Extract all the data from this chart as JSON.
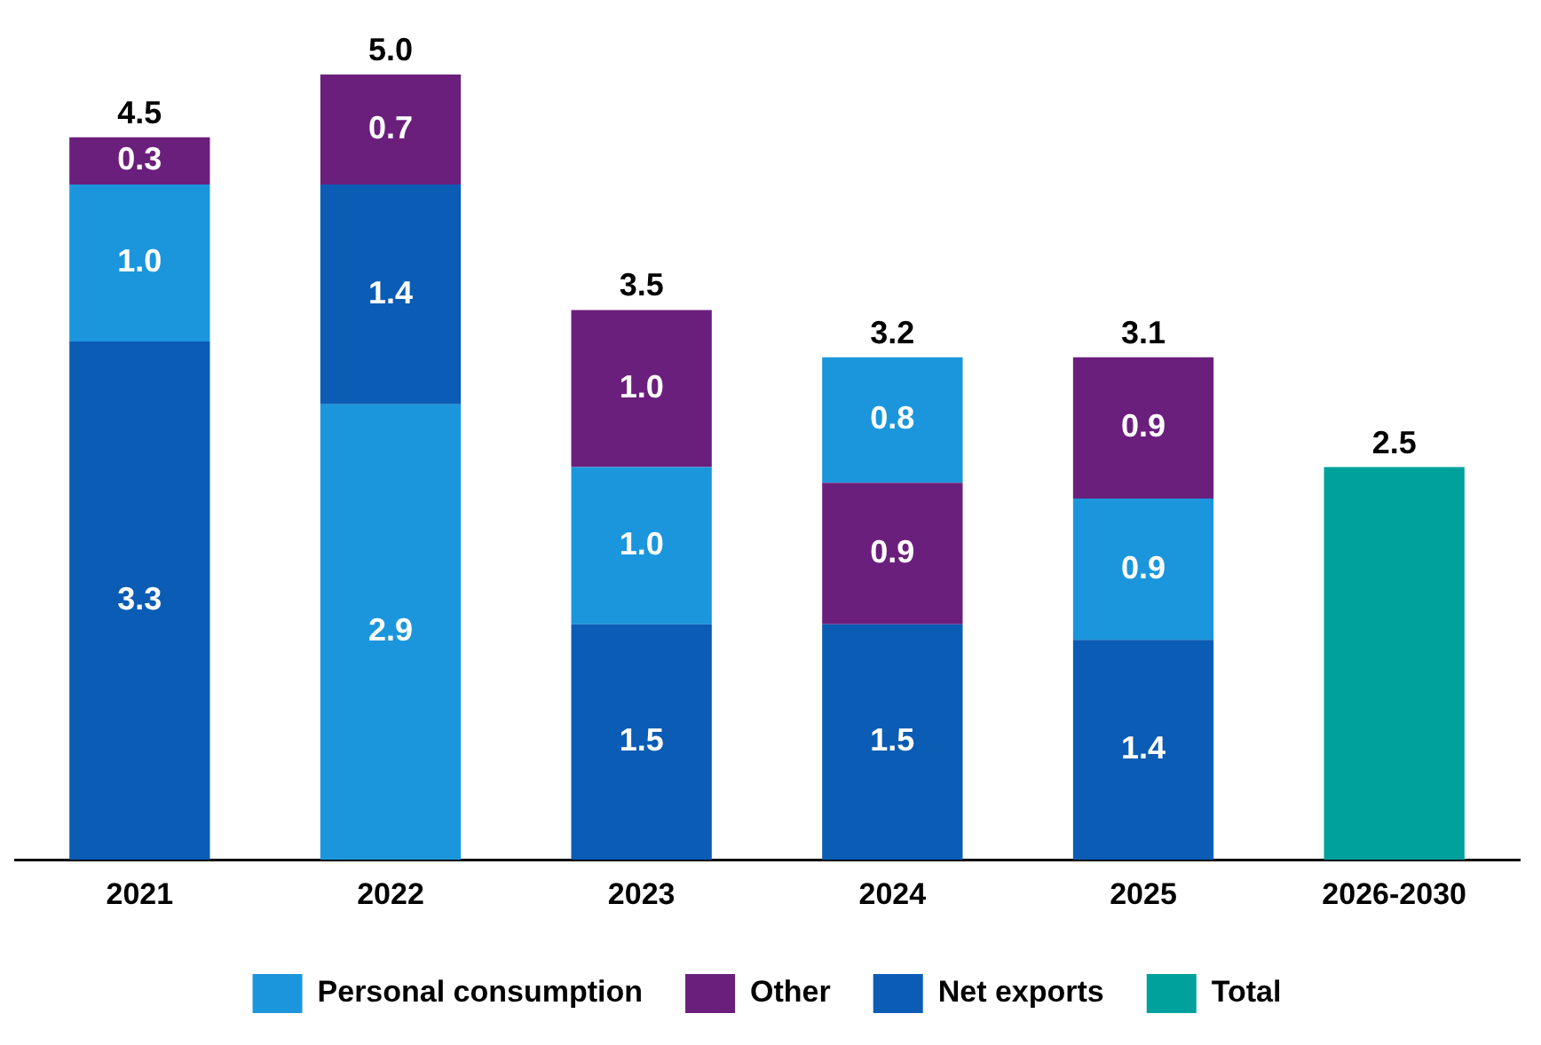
{
  "chart_data": {
    "type": "bar",
    "stacked": true,
    "categories": [
      "2021",
      "2022",
      "2023",
      "2024",
      "2025",
      "2026-2030"
    ],
    "series": [
      {
        "color": "#0a5cb4",
        "values": [
          3.3,
          null,
          1.5,
          1.5,
          1.4,
          null
        ],
        "value_labels": [
          "3.3",
          null,
          "1.5",
          "1.5",
          "1.4",
          null
        ]
      },
      {
        "name": "Personal consumption",
        "color": "#1b96dc",
        "values": [
          1.0,
          2.9,
          1.0,
          null,
          0.9,
          null
        ],
        "value_labels": [
          "1.0",
          "2.9",
          "1.0",
          null,
          "0.9",
          null
        ]
      },
      {
        "name": "Other",
        "color": "#6b1f7c",
        "values": [
          null,
          null,
          null,
          0.9,
          null,
          null
        ],
        "value_labels": [
          null,
          null,
          null,
          "0.9",
          null,
          null
        ]
      },
      {
        "name": "Net exports",
        "color": "#0a5cb4",
        "values": [
          null,
          1.4,
          null,
          null,
          null,
          null
        ],
        "value_labels": [
          null,
          "1.4",
          null,
          null,
          null,
          null
        ]
      },
      {
        "color": "#1b96dc",
        "values": [
          null,
          null,
          null,
          0.8,
          null,
          null
        ],
        "value_labels": [
          null,
          null,
          null,
          "0.8",
          null,
          null
        ]
      },
      {
        "color": "#6b1f7c",
        "values": [
          0.3,
          0.7,
          1.0,
          null,
          0.9,
          null
        ],
        "value_labels": [
          "0.3",
          "0.7",
          "1.0",
          null,
          "0.9",
          null
        ]
      },
      {
        "name": "Total",
        "color": "#00a19c",
        "values": [
          null,
          null,
          null,
          null,
          null,
          2.5
        ]
      }
    ],
    "totals": [
      "4.5",
      "5.0",
      "3.5",
      "3.2",
      "3.1",
      "2.5"
    ],
    "tick_labels": "x",
    "grid": false,
    "legend": "bottom"
  }
}
